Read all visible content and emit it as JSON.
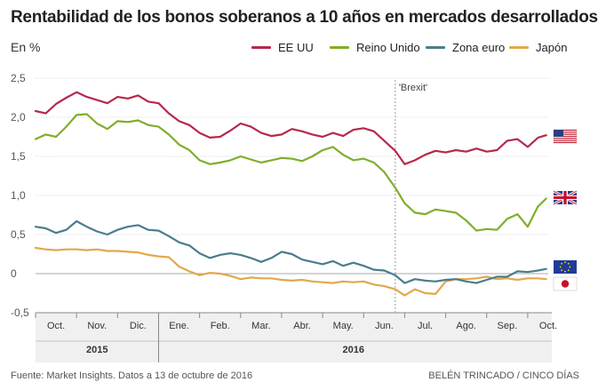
{
  "header": {
    "title": "Rentabilidad de los bonos soberanos a 10 años en mercados desarrollados",
    "unit_label": "En %"
  },
  "footer": {
    "source": "Fuente: Market Insights. Datos a 13 de octubre de 2016",
    "credit": "BELÉN TRINCADO / CINCO DÍAS"
  },
  "chart_data": {
    "type": "line",
    "title": "Rentabilidad de los bonos soberanos a 10 años en mercados desarrollados",
    "ylabel": "En %",
    "xlabel": "",
    "ylim": [
      -0.5,
      2.5
    ],
    "yticks": [
      "2,5",
      "2,0",
      "1,5",
      "1,0",
      "0,5",
      "0",
      "-0,5"
    ],
    "ytick_values": [
      2.5,
      2.0,
      1.5,
      1.0,
      0.5,
      0.0,
      -0.5
    ],
    "x_start": 0,
    "x_end": 12.5,
    "months": [
      "Oct.",
      "Nov.",
      "Dic.",
      "Ene.",
      "Feb.",
      "Mar.",
      "Abr.",
      "May.",
      "Jun.",
      "Jul.",
      "Ago.",
      "Sep.",
      "Oct."
    ],
    "years": [
      {
        "label": "2015",
        "start": 0,
        "end": 3
      },
      {
        "label": "2016",
        "start": 3,
        "end": 12.5
      }
    ],
    "annotation": {
      "label": "'Brexit'",
      "x": 8.77
    },
    "colors": {
      "us": "#b5294c",
      "uk": "#7fae2a",
      "euro": "#4a7c8c",
      "japan": "#e2a84a",
      "grid": "#d4d4d4",
      "zero": "#a8a8a8",
      "axis": "#888888",
      "band": "#f0f0f0"
    },
    "series": [
      {
        "name": "EE UU",
        "key": "us",
        "flag": "us-flag",
        "x": [
          0,
          0.25,
          0.5,
          0.75,
          1,
          1.25,
          1.5,
          1.75,
          2,
          2.25,
          2.5,
          2.75,
          3,
          3.25,
          3.5,
          3.75,
          4,
          4.25,
          4.5,
          4.75,
          5,
          5.25,
          5.5,
          5.75,
          6,
          6.25,
          6.5,
          6.75,
          7,
          7.25,
          7.5,
          7.75,
          8,
          8.25,
          8.5,
          8.77,
          9.0,
          9.25,
          9.5,
          9.75,
          10,
          10.25,
          10.5,
          10.75,
          11,
          11.25,
          11.5,
          11.75,
          12,
          12.25,
          12.45
        ],
        "values": [
          2.08,
          2.05,
          2.17,
          2.25,
          2.32,
          2.26,
          2.22,
          2.18,
          2.26,
          2.24,
          2.28,
          2.2,
          2.18,
          2.05,
          1.95,
          1.9,
          1.8,
          1.74,
          1.75,
          1.83,
          1.92,
          1.88,
          1.8,
          1.76,
          1.78,
          1.85,
          1.82,
          1.78,
          1.75,
          1.8,
          1.76,
          1.84,
          1.86,
          1.82,
          1.7,
          1.57,
          1.4,
          1.45,
          1.52,
          1.57,
          1.55,
          1.58,
          1.56,
          1.6,
          1.56,
          1.58,
          1.7,
          1.72,
          1.62,
          1.74,
          1.77
        ]
      },
      {
        "name": "Reino Unido",
        "key": "uk",
        "flag": "uk-flag",
        "x": [
          0,
          0.25,
          0.5,
          0.75,
          1,
          1.25,
          1.5,
          1.75,
          2,
          2.25,
          2.5,
          2.75,
          3,
          3.25,
          3.5,
          3.75,
          4,
          4.25,
          4.5,
          4.75,
          5,
          5.25,
          5.5,
          5.75,
          6,
          6.25,
          6.5,
          6.75,
          7,
          7.25,
          7.5,
          7.75,
          8,
          8.25,
          8.5,
          8.77,
          9.0,
          9.25,
          9.5,
          9.75,
          10,
          10.25,
          10.5,
          10.75,
          11,
          11.25,
          11.5,
          11.75,
          12,
          12.25,
          12.45
        ],
        "values": [
          1.72,
          1.78,
          1.75,
          1.88,
          2.03,
          2.04,
          1.92,
          1.85,
          1.95,
          1.94,
          1.96,
          1.9,
          1.88,
          1.78,
          1.65,
          1.58,
          1.45,
          1.4,
          1.42,
          1.45,
          1.5,
          1.46,
          1.42,
          1.45,
          1.48,
          1.47,
          1.44,
          1.5,
          1.58,
          1.62,
          1.52,
          1.45,
          1.47,
          1.42,
          1.3,
          1.1,
          0.9,
          0.78,
          0.76,
          0.82,
          0.8,
          0.78,
          0.68,
          0.55,
          0.57,
          0.56,
          0.7,
          0.76,
          0.6,
          0.86,
          0.96
        ]
      },
      {
        "name": "Zona euro",
        "key": "euro",
        "flag": "eu-flag",
        "x": [
          0,
          0.25,
          0.5,
          0.75,
          1,
          1.25,
          1.5,
          1.75,
          2,
          2.25,
          2.5,
          2.75,
          3,
          3.25,
          3.5,
          3.75,
          4,
          4.25,
          4.5,
          4.75,
          5,
          5.25,
          5.5,
          5.75,
          6,
          6.25,
          6.5,
          6.75,
          7,
          7.25,
          7.5,
          7.75,
          8,
          8.25,
          8.5,
          8.77,
          9.0,
          9.25,
          9.5,
          9.75,
          10,
          10.25,
          10.5,
          10.75,
          11,
          11.25,
          11.5,
          11.75,
          12,
          12.25,
          12.45
        ],
        "values": [
          0.6,
          0.58,
          0.52,
          0.56,
          0.67,
          0.6,
          0.54,
          0.5,
          0.56,
          0.6,
          0.62,
          0.56,
          0.55,
          0.48,
          0.4,
          0.36,
          0.26,
          0.2,
          0.24,
          0.26,
          0.24,
          0.2,
          0.15,
          0.2,
          0.28,
          0.25,
          0.18,
          0.15,
          0.12,
          0.16,
          0.1,
          0.14,
          0.1,
          0.05,
          0.04,
          -0.02,
          -0.12,
          -0.07,
          -0.09,
          -0.1,
          -0.08,
          -0.07,
          -0.1,
          -0.12,
          -0.08,
          -0.04,
          -0.04,
          0.03,
          0.02,
          0.04,
          0.06
        ]
      },
      {
        "name": "Japón",
        "key": "japan",
        "flag": "japan-flag",
        "x": [
          0,
          0.25,
          0.5,
          0.75,
          1,
          1.25,
          1.5,
          1.75,
          2,
          2.25,
          2.5,
          2.75,
          3,
          3.25,
          3.5,
          3.75,
          4,
          4.25,
          4.5,
          4.75,
          5,
          5.25,
          5.5,
          5.75,
          6,
          6.25,
          6.5,
          6.75,
          7,
          7.25,
          7.5,
          7.75,
          8,
          8.25,
          8.5,
          8.77,
          9.0,
          9.25,
          9.5,
          9.75,
          10,
          10.25,
          10.5,
          10.75,
          11,
          11.25,
          11.5,
          11.75,
          12,
          12.25,
          12.45
        ],
        "values": [
          0.33,
          0.31,
          0.3,
          0.31,
          0.31,
          0.3,
          0.31,
          0.29,
          0.29,
          0.28,
          0.27,
          0.24,
          0.22,
          0.21,
          0.09,
          0.03,
          -0.02,
          0.01,
          0.0,
          -0.03,
          -0.07,
          -0.05,
          -0.06,
          -0.06,
          -0.08,
          -0.09,
          -0.08,
          -0.1,
          -0.11,
          -0.12,
          -0.1,
          -0.11,
          -0.1,
          -0.14,
          -0.16,
          -0.2,
          -0.28,
          -0.2,
          -0.25,
          -0.26,
          -0.1,
          -0.07,
          -0.07,
          -0.06,
          -0.04,
          -0.07,
          -0.06,
          -0.08,
          -0.06,
          -0.06,
          -0.07
        ]
      }
    ]
  }
}
